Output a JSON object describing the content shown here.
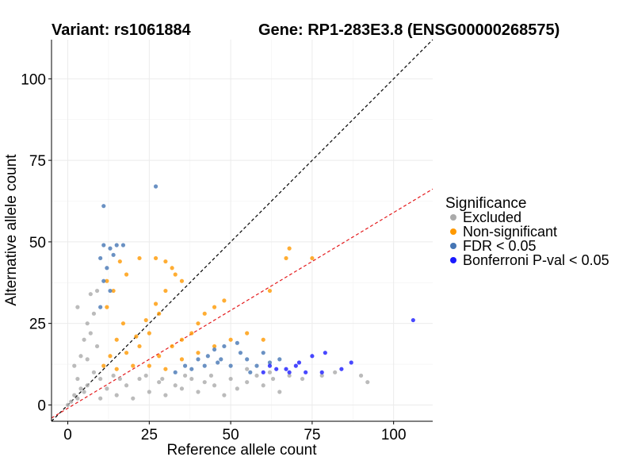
{
  "chart_data": {
    "type": "scatter",
    "title_variant": "Variant: rs1061884",
    "title_gene": "Gene: RP1-283E3.8 (ENSG00000268575)",
    "xlabel": "Reference allele count",
    "ylabel": "Alternative allele count",
    "xlim": [
      -5,
      112
    ],
    "ylim": [
      -5,
      112
    ],
    "xticks": [
      0,
      25,
      50,
      75,
      100
    ],
    "yticks": [
      0,
      25,
      50,
      75,
      100
    ],
    "xtick_labels": [
      "0",
      "25",
      "50",
      "75",
      "100"
    ],
    "ytick_labels": [
      "0",
      "25",
      "50",
      "75",
      "100"
    ],
    "grid": true,
    "reference_lines": [
      {
        "name": "identity",
        "slope": 1,
        "intercept": 0,
        "color": "#000000",
        "style": "dashed"
      },
      {
        "name": "expected-ratio",
        "slope": 0.6,
        "intercept": -1,
        "color": "#e41a1c",
        "style": "dashed"
      }
    ],
    "legend": {
      "title": "Significance",
      "placement": "right",
      "entries": [
        {
          "label": "Excluded",
          "color": "#aaaaaa"
        },
        {
          "label": "Non-significant",
          "color": "#ff9900"
        },
        {
          "label": "FDR < 0.05",
          "color": "#4575b4"
        },
        {
          "label": "Bonferroni P-val < 0.05",
          "color": "#1a1aff"
        }
      ]
    },
    "series": [
      {
        "name": "Excluded",
        "color": "#aaaaaa",
        "points": [
          [
            0,
            0
          ],
          [
            1,
            1
          ],
          [
            2,
            3
          ],
          [
            3,
            2
          ],
          [
            4,
            5
          ],
          [
            5,
            4
          ],
          [
            3,
            8
          ],
          [
            6,
            6
          ],
          [
            2,
            12
          ],
          [
            4,
            15
          ],
          [
            5,
            20
          ],
          [
            6,
            25
          ],
          [
            3,
            30
          ],
          [
            7,
            34
          ],
          [
            8,
            10
          ],
          [
            10,
            2
          ],
          [
            12,
            5
          ],
          [
            15,
            3
          ],
          [
            18,
            6
          ],
          [
            20,
            2
          ],
          [
            22,
            8
          ],
          [
            25,
            4
          ],
          [
            28,
            7
          ],
          [
            30,
            3
          ],
          [
            33,
            6
          ],
          [
            35,
            5
          ],
          [
            38,
            8
          ],
          [
            40,
            4
          ],
          [
            42,
            7
          ],
          [
            45,
            6
          ],
          [
            48,
            3
          ],
          [
            50,
            8
          ],
          [
            52,
            5
          ],
          [
            55,
            7
          ],
          [
            58,
            9
          ],
          [
            60,
            6
          ],
          [
            63,
            8
          ],
          [
            65,
            4
          ],
          [
            68,
            9
          ],
          [
            72,
            8
          ],
          [
            78,
            9
          ],
          [
            82,
            10
          ],
          [
            90,
            9
          ],
          [
            92,
            7
          ],
          [
            9,
            18
          ],
          [
            8,
            28
          ],
          [
            7,
            22
          ],
          [
            6,
            14
          ],
          [
            9,
            35
          ],
          [
            10,
            8
          ],
          [
            14,
            9
          ],
          [
            16,
            8
          ],
          [
            24,
            9
          ],
          [
            29,
            8
          ],
          [
            36,
            9
          ],
          [
            44,
            9
          ],
          [
            55,
            11
          ],
          [
            62,
            10
          ]
        ]
      },
      {
        "name": "Non-significant",
        "color": "#ff9900",
        "points": [
          [
            11,
            12
          ],
          [
            13,
            15
          ],
          [
            15,
            20
          ],
          [
            17,
            25
          ],
          [
            12,
            30
          ],
          [
            14,
            35
          ],
          [
            18,
            40
          ],
          [
            22,
            45
          ],
          [
            27,
            45
          ],
          [
            30,
            44
          ],
          [
            32,
            42
          ],
          [
            20,
            12
          ],
          [
            22,
            18
          ],
          [
            25,
            22
          ],
          [
            28,
            28
          ],
          [
            30,
            35
          ],
          [
            33,
            40
          ],
          [
            35,
            38
          ],
          [
            25,
            12
          ],
          [
            28,
            15
          ],
          [
            32,
            18
          ],
          [
            35,
            20
          ],
          [
            38,
            22
          ],
          [
            40,
            25
          ],
          [
            42,
            28
          ],
          [
            45,
            30
          ],
          [
            48,
            32
          ],
          [
            30,
            11
          ],
          [
            35,
            14
          ],
          [
            40,
            16
          ],
          [
            45,
            18
          ],
          [
            50,
            20
          ],
          [
            55,
            22
          ],
          [
            60,
            20
          ],
          [
            62,
            35
          ],
          [
            68,
            48
          ],
          [
            67,
            45
          ],
          [
            75,
            45
          ],
          [
            15,
            11
          ],
          [
            18,
            16
          ],
          [
            21,
            21
          ],
          [
            24,
            26
          ],
          [
            27,
            31
          ],
          [
            12,
            38
          ],
          [
            16,
            44
          ]
        ]
      },
      {
        "name": "FDR < 0.05",
        "color": "#4575b4",
        "points": [
          [
            11,
            61
          ],
          [
            27,
            67
          ],
          [
            11,
            49
          ],
          [
            13,
            48
          ],
          [
            14,
            46
          ],
          [
            15,
            49
          ],
          [
            17,
            49
          ],
          [
            10,
            45
          ],
          [
            12,
            42
          ],
          [
            11,
            38
          ],
          [
            13,
            35
          ],
          [
            10,
            30
          ],
          [
            33,
            10
          ],
          [
            36,
            12
          ],
          [
            40,
            14
          ],
          [
            43,
            15
          ],
          [
            45,
            17
          ],
          [
            47,
            14
          ],
          [
            50,
            12
          ],
          [
            53,
            16
          ],
          [
            55,
            14
          ],
          [
            58,
            12
          ],
          [
            60,
            16
          ],
          [
            65,
            14
          ],
          [
            48,
            18
          ],
          [
            52,
            19
          ],
          [
            38,
            11
          ],
          [
            42,
            12
          ],
          [
            46,
            13
          ],
          [
            56,
            10
          ],
          [
            62,
            13
          ]
        ]
      },
      {
        "name": "Bonferroni P-val < 0.05",
        "color": "#1a1aff",
        "points": [
          [
            106,
            26
          ],
          [
            87,
            13
          ],
          [
            79,
            16
          ],
          [
            75,
            15
          ],
          [
            70,
            12
          ],
          [
            71,
            13
          ],
          [
            67,
            11
          ],
          [
            60,
            10
          ],
          [
            62,
            12
          ],
          [
            64,
            11
          ],
          [
            73,
            10
          ],
          [
            78,
            10
          ],
          [
            84,
            11
          ],
          [
            68,
            10
          ]
        ]
      }
    ]
  }
}
